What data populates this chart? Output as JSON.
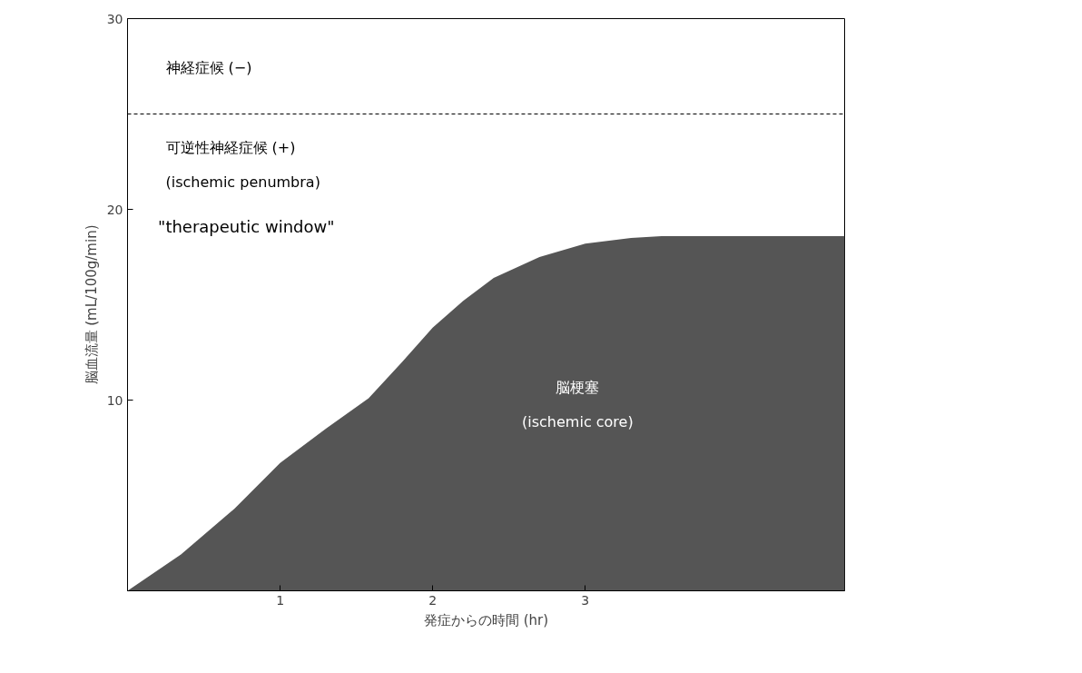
{
  "chart_data": {
    "type": "area",
    "xlabel": "発症からの時間 (hr)",
    "ylabel": "脳血流量 (mL/100g/min)",
    "x": [
      0,
      0.35,
      0.7,
      1,
      1.3,
      1.58,
      1.8,
      2,
      2.2,
      2.4,
      2.7,
      3,
      3.3,
      3.5,
      4,
      4.7
    ],
    "series": [
      {
        "color": "#555555",
        "values": [
          0,
          1.9,
          4.3,
          6.7,
          8.5,
          10.1,
          12,
          13.8,
          15.2,
          16.4,
          17.5,
          18.2,
          18.5,
          18.6,
          18.6,
          18.6
        ]
      }
    ],
    "xlim": [
      0,
      4.7
    ],
    "ylim": [
      0,
      30
    ],
    "xticks": [
      1,
      2,
      3
    ],
    "yticks": [
      10,
      20,
      30
    ],
    "grid": false,
    "ref_lines": [
      {
        "axis": "y",
        "value": 25,
        "color": "#000000",
        "line_style": "dashed"
      }
    ],
    "annotations": [
      "神経症候 (−)",
      "可逆性神経症候 (+)",
      "(ischemic penumbra)",
      "\"therapeutic window\"",
      "脳梗塞",
      "(ischemic core)"
    ]
  }
}
